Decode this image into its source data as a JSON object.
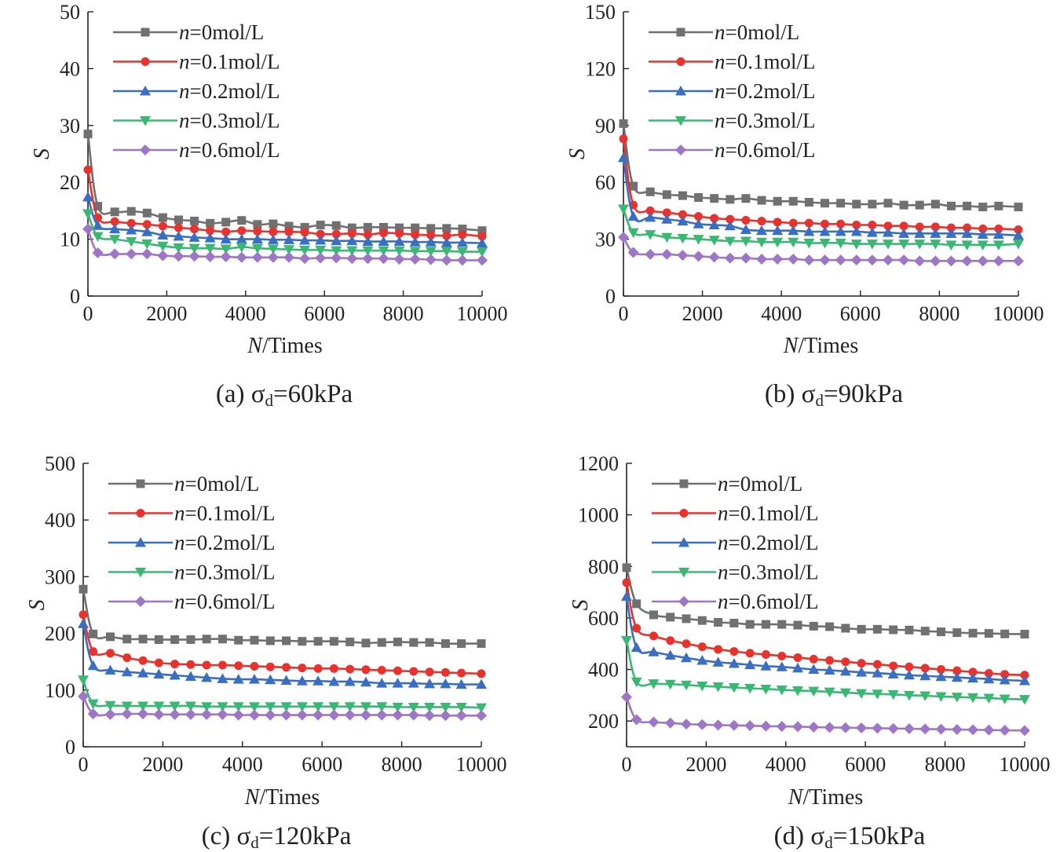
{
  "chart_data": [
    {
      "type": "line",
      "caption": {
        "prefix": "(a) ",
        "symbol": "σ",
        "subscript": "d",
        "value": "=60kPa"
      },
      "xlabel": {
        "italic": "N",
        "rest": "/Times"
      },
      "ylabel": "S",
      "xlim": [
        0,
        10000
      ],
      "ylim": [
        0,
        50
      ],
      "xticks": [
        0,
        2000,
        4000,
        6000,
        8000,
        10000
      ],
      "yticks": [
        0,
        10,
        20,
        30,
        40,
        50
      ],
      "x": [
        0,
        250,
        680,
        1100,
        1500,
        1900,
        2300,
        2700,
        3100,
        3500,
        3900,
        4300,
        4700,
        5100,
        5500,
        5900,
        6300,
        6700,
        7100,
        7500,
        7900,
        8300,
        8700,
        9100,
        9500,
        10000
      ],
      "legend": "top-left",
      "series": [
        {
          "name": "=0mol/L",
          "italic": "n",
          "color": "#707070",
          "marker": "square",
          "values": [
            28.5,
            15.8,
            14.8,
            14.9,
            14.6,
            13.8,
            13.4,
            13.2,
            12.8,
            13.0,
            13.3,
            12.6,
            12.7,
            12.3,
            12.1,
            12.5,
            12.4,
            12.0,
            12.1,
            12.1,
            12.0,
            12.0,
            11.9,
            11.9,
            11.8,
            11.5
          ]
        },
        {
          "name": "=0.1mol/L",
          "italic": "n",
          "color": "#e8322d",
          "marker": "circle",
          "values": [
            22.2,
            13.8,
            13.1,
            12.8,
            12.6,
            12.3,
            12.0,
            11.8,
            11.5,
            11.3,
            11.5,
            11.4,
            11.3,
            11.3,
            11.2,
            10.9,
            10.9,
            11.0,
            10.8,
            11.1,
            11.0,
            10.8,
            10.7,
            10.6,
            10.8,
            10.5
          ]
        },
        {
          "name": "=0.2mol/L",
          "italic": "n",
          "color": "#3a6ec0",
          "marker": "triangle-up",
          "values": [
            17.4,
            12.4,
            11.8,
            11.6,
            11.3,
            10.7,
            10.5,
            10.3,
            10.2,
            10.0,
            10.0,
            10.0,
            9.9,
            9.9,
            9.8,
            9.8,
            9.7,
            9.7,
            9.6,
            9.6,
            9.6,
            9.5,
            9.5,
            9.4,
            9.4,
            9.3
          ]
        },
        {
          "name": "=0.3mol/L",
          "italic": "n",
          "color": "#3ab873",
          "marker": "triangle-down",
          "values": [
            14.5,
            10.5,
            10.0,
            9.6,
            9.2,
            8.8,
            8.5,
            8.4,
            8.4,
            8.3,
            8.6,
            8.4,
            8.3,
            8.2,
            8.1,
            8.1,
            8.0,
            8.0,
            8.0,
            8.0,
            8.0,
            7.9,
            7.9,
            7.9,
            7.8,
            7.8
          ]
        },
        {
          "name": "=0.6mol/L",
          "italic": "n",
          "color": "#9e76c6",
          "marker": "diamond",
          "values": [
            11.8,
            7.6,
            7.4,
            7.4,
            7.4,
            7.1,
            7.0,
            7.0,
            6.9,
            6.9,
            6.8,
            6.8,
            6.8,
            6.8,
            6.6,
            6.7,
            6.7,
            6.6,
            6.6,
            6.6,
            6.5,
            6.5,
            6.4,
            6.3,
            6.3,
            6.3
          ]
        }
      ]
    },
    {
      "type": "line",
      "caption": {
        "prefix": "(b) ",
        "symbol": "σ",
        "subscript": "d",
        "value": "=90kPa"
      },
      "xlabel": {
        "italic": "N",
        "rest": "/Times"
      },
      "ylabel": "S",
      "xlim": [
        0,
        10000
      ],
      "ylim": [
        0,
        150
      ],
      "xticks": [
        0,
        2000,
        4000,
        6000,
        8000,
        10000
      ],
      "yticks": [
        0,
        30,
        60,
        90,
        120,
        150
      ],
      "x": [
        0,
        250,
        680,
        1100,
        1500,
        1900,
        2300,
        2700,
        3100,
        3500,
        3900,
        4300,
        4700,
        5100,
        5500,
        5900,
        6300,
        6700,
        7100,
        7500,
        7900,
        8300,
        8700,
        9100,
        9500,
        10000
      ],
      "legend": "top-left",
      "series": [
        {
          "name": "=0mol/L",
          "italic": "n",
          "color": "#707070",
          "marker": "square",
          "values": [
            91,
            58,
            55,
            53.5,
            53,
            52,
            51.5,
            51,
            51.5,
            50.5,
            50,
            50,
            49.5,
            49,
            49,
            48.5,
            48.5,
            49,
            48,
            48,
            48.5,
            47.5,
            47.5,
            47,
            47.5,
            47
          ]
        },
        {
          "name": "=0.1mol/L",
          "italic": "n",
          "color": "#e8322d",
          "marker": "circle",
          "values": [
            83,
            48,
            45,
            44,
            43,
            42,
            41,
            40.5,
            40,
            39.5,
            39,
            38.5,
            38.5,
            38,
            38,
            37.5,
            37.5,
            37,
            37,
            36.5,
            36.5,
            36,
            36,
            35.5,
            35.5,
            35
          ]
        },
        {
          "name": "=0.2mol/L",
          "italic": "n",
          "color": "#3a6ec0",
          "marker": "triangle-up",
          "values": [
            73,
            42,
            41.5,
            40.5,
            39.5,
            38,
            37.5,
            37,
            35,
            34.5,
            34.5,
            34.5,
            34,
            34,
            34,
            34,
            33.5,
            33.5,
            33,
            33,
            33,
            33,
            33,
            32.5,
            32.5,
            32
          ]
        },
        {
          "name": "=0.3mol/L",
          "italic": "n",
          "color": "#3ab873",
          "marker": "triangle-down",
          "values": [
            46,
            33.5,
            32.5,
            31,
            30.5,
            30,
            29.5,
            29,
            29,
            28.5,
            28.5,
            28.5,
            28,
            28,
            28,
            27.5,
            27.5,
            27.5,
            27.5,
            27.5,
            27.5,
            27,
            27,
            27,
            27,
            27.5
          ]
        },
        {
          "name": "=0.6mol/L",
          "italic": "n",
          "color": "#9e76c6",
          "marker": "diamond",
          "values": [
            31,
            23,
            22,
            22,
            21.5,
            21,
            20.5,
            20,
            20,
            19.5,
            19.5,
            19.5,
            19,
            19,
            19,
            19,
            19,
            19,
            19,
            18.5,
            18.5,
            18.5,
            18.5,
            18.5,
            18.5,
            18.5
          ]
        }
      ]
    },
    {
      "type": "line",
      "caption": {
        "prefix": "(c) ",
        "symbol": "σ",
        "subscript": "d",
        "value": "=120kPa"
      },
      "xlabel": {
        "italic": "N",
        "rest": "/Times"
      },
      "ylabel": "S",
      "xlim": [
        0,
        10000
      ],
      "ylim": [
        0,
        500
      ],
      "xticks": [
        0,
        2000,
        4000,
        6000,
        8000,
        10000
      ],
      "yticks": [
        0,
        100,
        200,
        300,
        400,
        500
      ],
      "x": [
        0,
        250,
        680,
        1100,
        1500,
        1900,
        2300,
        2700,
        3100,
        3500,
        3900,
        4300,
        4700,
        5100,
        5500,
        5900,
        6300,
        6700,
        7100,
        7500,
        7900,
        8300,
        8700,
        9100,
        9500,
        10000
      ],
      "legend": "top-left",
      "series": [
        {
          "name": "=0mol/L",
          "italic": "n",
          "color": "#707070",
          "marker": "square",
          "values": [
            278,
            199,
            194,
            190,
            190,
            189,
            189,
            189,
            190,
            190,
            188,
            188,
            187,
            187,
            186,
            186,
            186,
            185,
            183,
            184,
            185,
            184,
            184,
            182,
            182,
            182
          ]
        },
        {
          "name": "=0.1mol/L",
          "italic": "n",
          "color": "#e8322d",
          "marker": "circle",
          "values": [
            233,
            168,
            165,
            157,
            152,
            148,
            146,
            145,
            144,
            144,
            143,
            142,
            141,
            140,
            139,
            138,
            138,
            137,
            136,
            135,
            134,
            133,
            132,
            131,
            130,
            129
          ]
        },
        {
          "name": "=0.2mol/L",
          "italic": "n",
          "color": "#3a6ec0",
          "marker": "triangle-up",
          "values": [
            217,
            143,
            135,
            132,
            130,
            128,
            126,
            124,
            122,
            120,
            119,
            119,
            118,
            117,
            116,
            116,
            115,
            115,
            114,
            112,
            112,
            112,
            111,
            111,
            110,
            110
          ]
        },
        {
          "name": "=0.3mol/L",
          "italic": "n",
          "color": "#3ab873",
          "marker": "triangle-down",
          "values": [
            118,
            76,
            73,
            72,
            72,
            72,
            72,
            72,
            71,
            71,
            71,
            71,
            71,
            71,
            71,
            71,
            71,
            71,
            71,
            71,
            70,
            70,
            70,
            70,
            70,
            69
          ]
        },
        {
          "name": "=0.6mol/L",
          "italic": "n",
          "color": "#9e76c6",
          "marker": "diamond",
          "values": [
            89,
            58,
            57,
            58,
            58,
            57,
            57,
            57,
            57,
            57,
            56,
            56,
            56,
            56,
            56,
            56,
            56,
            56,
            56,
            56,
            56,
            56,
            55,
            55,
            55,
            55
          ]
        }
      ]
    },
    {
      "type": "line",
      "caption": {
        "prefix": "(d) ",
        "symbol": "σ",
        "subscript": "d",
        "value": "=150kPa"
      },
      "xlabel": {
        "italic": "N",
        "rest": "/Times"
      },
      "ylabel": "S",
      "xlim": [
        0,
        10000
      ],
      "ylim": [
        100,
        1200
      ],
      "xticks": [
        0,
        2000,
        4000,
        6000,
        8000,
        10000
      ],
      "yticks": [
        200,
        400,
        600,
        800,
        1000,
        1200
      ],
      "x": [
        0,
        250,
        680,
        1100,
        1500,
        1900,
        2300,
        2700,
        3100,
        3500,
        3900,
        4300,
        4700,
        5100,
        5500,
        5900,
        6300,
        6700,
        7100,
        7500,
        7900,
        8300,
        8700,
        9100,
        9500,
        10000
      ],
      "legend": "top-left",
      "series": [
        {
          "name": "=0mol/L",
          "italic": "n",
          "color": "#707070",
          "marker": "square",
          "values": [
            795,
            655,
            612,
            603,
            597,
            590,
            583,
            580,
            575,
            575,
            575,
            572,
            568,
            566,
            560,
            556,
            556,
            554,
            553,
            549,
            546,
            543,
            541,
            540,
            538,
            537
          ]
        },
        {
          "name": "=0.1mol/L",
          "italic": "n",
          "color": "#e8322d",
          "marker": "circle",
          "values": [
            737,
            560,
            530,
            512,
            500,
            488,
            478,
            470,
            463,
            458,
            452,
            446,
            440,
            435,
            430,
            424,
            420,
            414,
            410,
            405,
            400,
            395,
            390,
            385,
            381,
            378
          ]
        },
        {
          "name": "=0.2mol/L",
          "italic": "n",
          "color": "#3a6ec0",
          "marker": "triangle-up",
          "values": [
            683,
            485,
            468,
            455,
            445,
            435,
            428,
            423,
            418,
            413,
            410,
            405,
            400,
            397,
            393,
            389,
            386,
            382,
            378,
            375,
            372,
            369,
            366,
            363,
            359,
            356
          ]
        },
        {
          "name": "=0.3mol/L",
          "italic": "n",
          "color": "#3ab873",
          "marker": "triangle-down",
          "values": [
            513,
            352,
            345,
            343,
            340,
            336,
            333,
            330,
            327,
            324,
            321,
            318,
            316,
            313,
            310,
            307,
            305,
            303,
            300,
            298,
            295,
            293,
            291,
            289,
            286,
            284
          ]
        },
        {
          "name": "=0.6mol/L",
          "italic": "n",
          "color": "#9e76c6",
          "marker": "diamond",
          "values": [
            293,
            205,
            196,
            192,
            188,
            186,
            184,
            183,
            182,
            180,
            179,
            178,
            176,
            175,
            174,
            173,
            172,
            171,
            170,
            169,
            168,
            167,
            166,
            165,
            164,
            163
          ]
        }
      ]
    }
  ]
}
